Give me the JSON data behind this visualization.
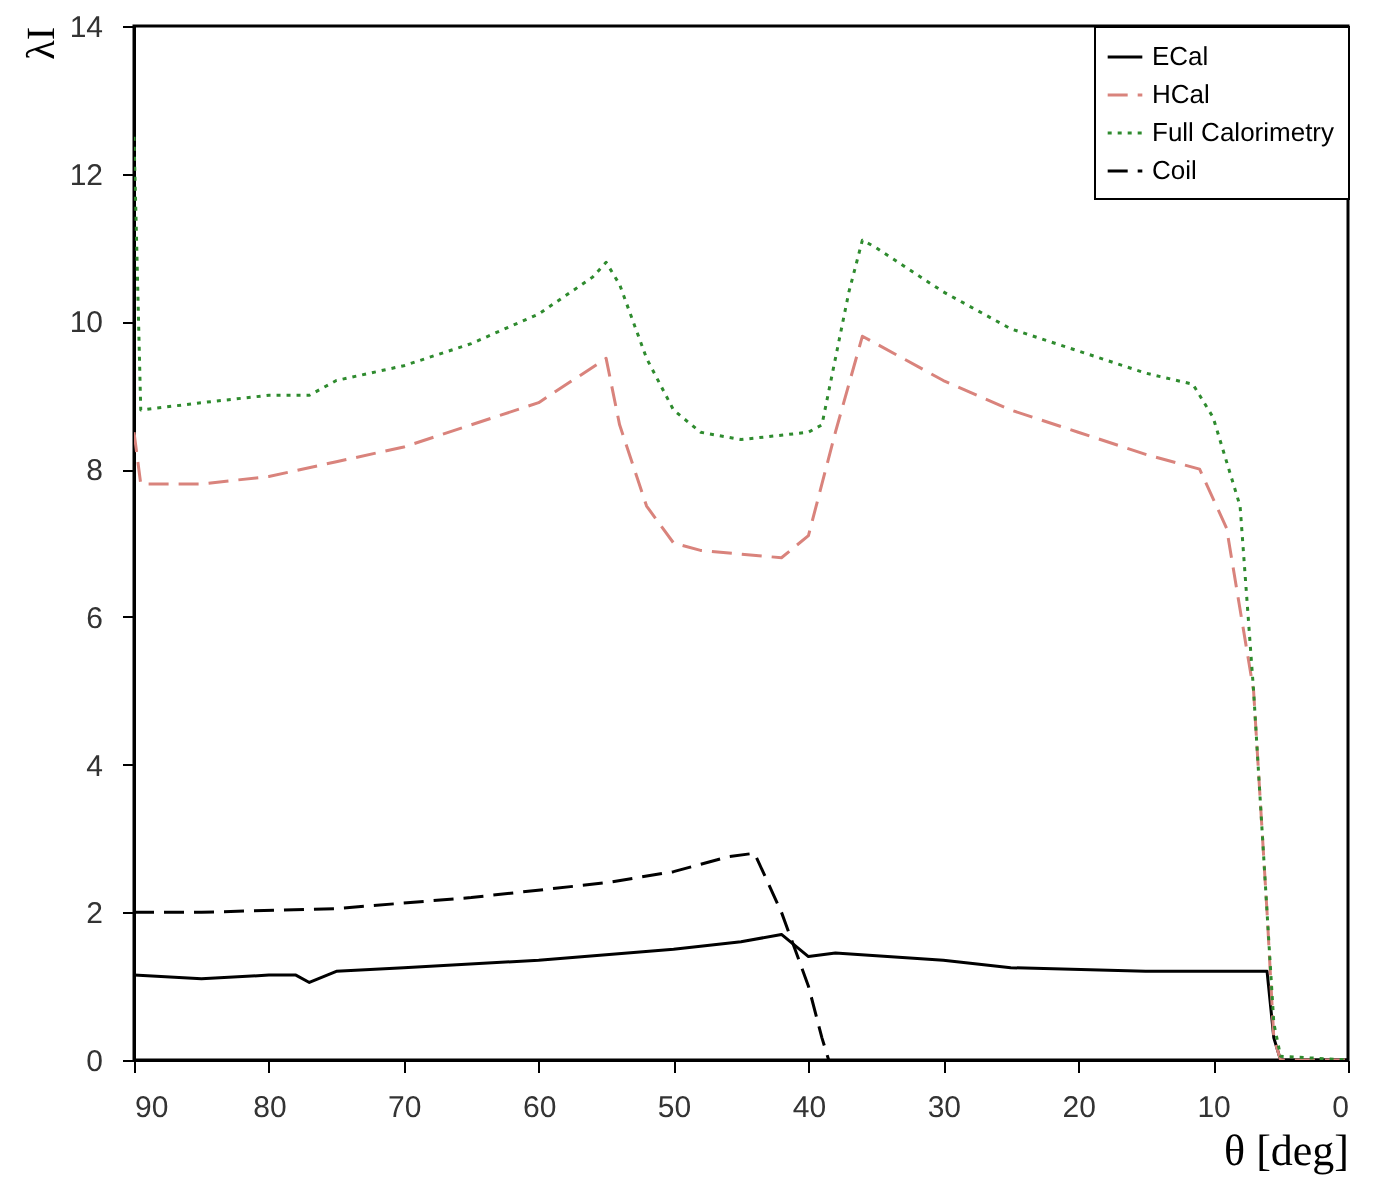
{
  "chart_data": {
    "type": "line",
    "xlabel": "θ [deg]",
    "ylabel": "λI",
    "xlim": [
      90,
      0
    ],
    "xticks": [
      90,
      80,
      70,
      60,
      50,
      40,
      30,
      20,
      10,
      0
    ],
    "ylim": [
      0,
      14
    ],
    "yticks": [
      0,
      2,
      4,
      6,
      8,
      10,
      12,
      14
    ],
    "grid": false,
    "legend": "top right",
    "marker": "none",
    "series": [
      {
        "name": "ECal",
        "color": "#000000",
        "line_style": "solid",
        "x": [
          90,
          85,
          80,
          78,
          77,
          75,
          70,
          60,
          50,
          45,
          42,
          40,
          38,
          30,
          25,
          15,
          6,
          5.5,
          5,
          0
        ],
        "values": [
          1.15,
          1.1,
          1.15,
          1.15,
          1.05,
          1.2,
          1.25,
          1.35,
          1.5,
          1.6,
          1.7,
          1.4,
          1.45,
          1.35,
          1.25,
          1.2,
          1.2,
          0.3,
          0,
          0
        ]
      },
      {
        "name": "HCal",
        "color": "#d9837c",
        "line_style": "dashed",
        "x": [
          90,
          89.5,
          85,
          80,
          75,
          70,
          65,
          60,
          55,
          54,
          52,
          50,
          48,
          45,
          42,
          40,
          38,
          36,
          35,
          30,
          25,
          20,
          15,
          11,
          9,
          7,
          6,
          5.5,
          5,
          0
        ],
        "values": [
          8.5,
          7.8,
          7.8,
          7.9,
          8.1,
          8.3,
          8.6,
          8.9,
          9.5,
          8.6,
          7.5,
          7.0,
          6.9,
          6.85,
          6.8,
          7.1,
          8.5,
          9.8,
          9.7,
          9.2,
          8.8,
          8.5,
          8.2,
          8.0,
          7.2,
          5,
          2,
          0.3,
          0,
          0
        ]
      },
      {
        "name": "Full Calorimetry",
        "color": "#2e8b2e",
        "line_style": "dotted",
        "x": [
          90,
          89.5,
          85,
          80,
          77,
          75,
          70,
          65,
          60,
          56,
          55,
          54,
          52,
          50,
          48,
          45,
          40,
          39,
          37,
          36,
          35,
          30,
          25,
          20,
          15,
          11.5,
          10,
          8,
          7,
          6,
          5.5,
          5,
          0
        ],
        "values": [
          12.5,
          8.8,
          8.9,
          9.0,
          9.0,
          9.2,
          9.4,
          9.7,
          10.1,
          10.6,
          10.8,
          10.5,
          9.5,
          8.8,
          8.5,
          8.4,
          8.5,
          8.6,
          10.4,
          11.1,
          11.0,
          10.4,
          9.9,
          9.6,
          9.3,
          9.15,
          8.7,
          7.5,
          5,
          2,
          0.5,
          0.05,
          0
        ]
      },
      {
        "name": "Coil",
        "color": "#000000",
        "line_style": "dashed",
        "x": [
          90,
          85,
          75,
          65,
          55,
          50,
          46,
          44,
          42,
          40,
          39,
          38.5
        ],
        "values": [
          2.0,
          2.0,
          2.05,
          2.2,
          2.4,
          2.55,
          2.75,
          2.8,
          2.0,
          1.0,
          0.3,
          0
        ]
      }
    ]
  }
}
